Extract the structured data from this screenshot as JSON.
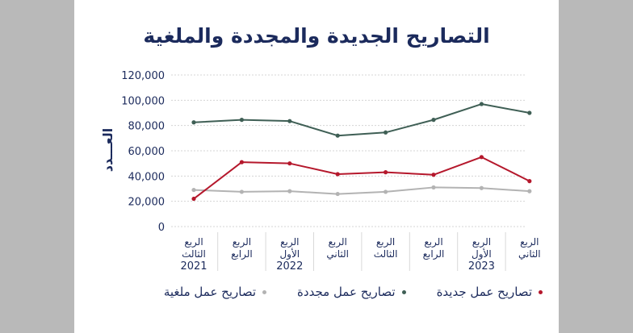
{
  "chart_data": {
    "type": "line",
    "title": "التصاريح الجديدة والمجددة والملغية",
    "ylabel": "العـــدد",
    "xlabel": "",
    "ylim": [
      0,
      120000
    ],
    "yticks": [
      "0",
      "20,000",
      "40,000",
      "60,000",
      "80,000",
      "100,000",
      "120,000"
    ],
    "ytick_values": [
      0,
      20000,
      40000,
      60000,
      80000,
      100000,
      120000
    ],
    "grid": true,
    "legend_position": "bottom",
    "categories": [
      [
        "الربع",
        "الثالث",
        "2021"
      ],
      [
        "الربع",
        "الرابع",
        ""
      ],
      [
        "الربع",
        "الأول",
        "2022"
      ],
      [
        "الربع",
        "الثاني",
        ""
      ],
      [
        "الربع",
        "الثالث",
        ""
      ],
      [
        "الربع",
        "الرابع",
        ""
      ],
      [
        "الربع",
        "الأول",
        "2023"
      ],
      [
        "الربع",
        "الثاني",
        ""
      ]
    ],
    "series": [
      {
        "name": "تصاريح عمل جديدة",
        "color": "#b5182c",
        "values": [
          22000,
          51000,
          50000,
          41500,
          43000,
          41000,
          55000,
          36000
        ]
      },
      {
        "name": "تصاريح عمل مجددة",
        "color": "#3f5f55",
        "values": [
          82500,
          84500,
          83500,
          72000,
          74500,
          84500,
          97000,
          90000
        ]
      },
      {
        "name": "تصاريح عمل ملغية",
        "color": "#b3b3b3",
        "values": [
          29000,
          27500,
          28000,
          25800,
          27500,
          31000,
          30500,
          28000
        ]
      }
    ]
  }
}
